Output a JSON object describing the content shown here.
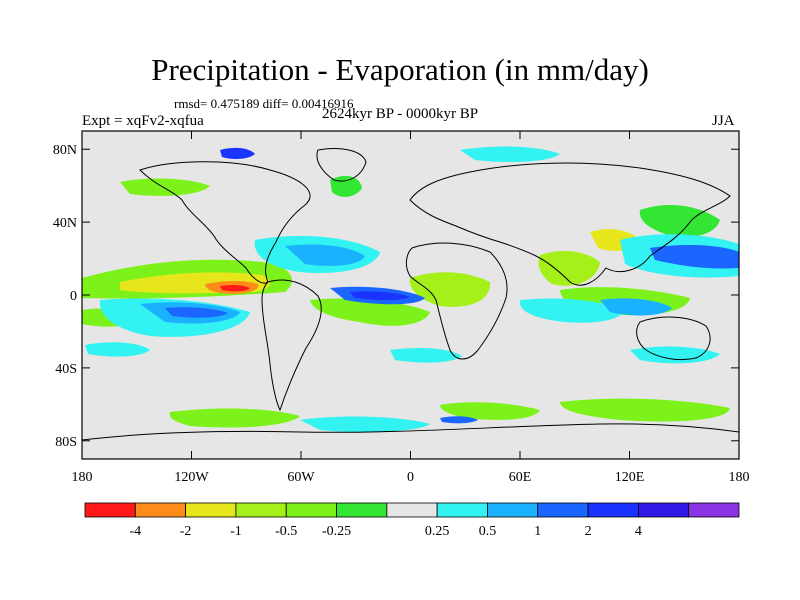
{
  "title": "Precipitation - Evaporation (in mm/day)",
  "stats": "rmsd= 0.475189 diff= 0.00416916",
  "period": "2624kyr BP - 0000kyr BP",
  "experiment": "Expt = xqFv2-xqfua",
  "season": "JJA",
  "map": {
    "lon_ticks": [
      {
        "lon": -180,
        "label": "180"
      },
      {
        "lon": -120,
        "label": "120W"
      },
      {
        "lon": -60,
        "label": "60W"
      },
      {
        "lon": 0,
        "label": "0"
      },
      {
        "lon": 60,
        "label": "60E"
      },
      {
        "lon": 120,
        "label": "120E"
      },
      {
        "lon": 180,
        "label": "180"
      }
    ],
    "lat_ticks": [
      {
        "lat": 80,
        "label": "80N"
      },
      {
        "lat": 40,
        "label": "40N"
      },
      {
        "lat": 0,
        "label": "0"
      },
      {
        "lat": -40,
        "label": "40S"
      },
      {
        "lat": -80,
        "label": "80S"
      }
    ],
    "lon_range": [
      -180,
      180
    ],
    "lat_range": [
      -90,
      90
    ],
    "background_color": "#e6e6e6"
  },
  "colorbar": {
    "colors": [
      "#ff1a1a",
      "#ff8c1a",
      "#e6e61a",
      "#a6f01a",
      "#7df21a",
      "#33e633",
      "#e6e6e6",
      "#33f2f2",
      "#1ab2ff",
      "#1a66ff",
      "#1a33ff",
      "#3319e6",
      "#8c33e6"
    ],
    "labels": [
      "-4",
      "-2",
      "-1",
      "-0.5",
      "-0.25",
      "0.25",
      "0.5",
      "1",
      "2",
      "4"
    ],
    "label_positions": [
      1,
      2,
      3,
      4,
      5,
      7,
      8,
      9,
      10,
      11
    ]
  }
}
